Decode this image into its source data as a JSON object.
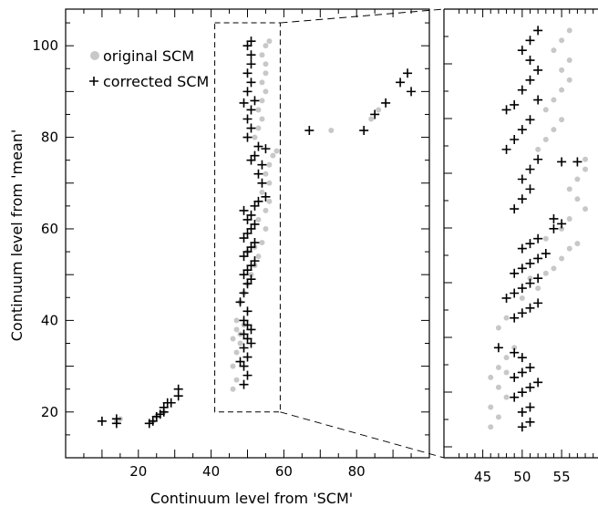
{
  "chart_data": [
    {
      "type": "scatter",
      "title": "",
      "xlabel": "Continuum level from 'SCM'",
      "ylabel": "Continuum level from 'mean'",
      "xlim": [
        0,
        100
      ],
      "ylim": [
        10,
        108
      ],
      "x_ticks": [
        20,
        40,
        60,
        80
      ],
      "y_ticks": [
        20,
        40,
        60,
        80,
        100
      ],
      "legend": {
        "placement": "top-left"
      },
      "zoom_box": {
        "x": [
          41,
          59
        ],
        "y": [
          20,
          105
        ]
      },
      "series": [
        {
          "name": "original SCM",
          "marker": "dot",
          "color": "#c8c8c8",
          "points": [
            [
              14,
              18
            ],
            [
              15,
              18.5
            ],
            [
              24,
              18
            ],
            [
              25,
              19
            ],
            [
              27,
              20
            ],
            [
              46,
              25
            ],
            [
              47,
              27
            ],
            [
              46,
              30
            ],
            [
              47,
              33
            ],
            [
              48,
              35
            ],
            [
              46,
              36
            ],
            [
              47,
              38
            ],
            [
              48,
              37
            ],
            [
              49,
              39
            ],
            [
              47,
              40
            ],
            [
              48,
              44
            ],
            [
              49,
              46
            ],
            [
              50,
              48
            ],
            [
              51,
              50
            ],
            [
              52,
              52
            ],
            [
              53,
              54
            ],
            [
              50,
              55
            ],
            [
              52,
              56
            ],
            [
              54,
              57
            ],
            [
              55,
              60
            ],
            [
              53,
              62
            ],
            [
              55,
              64
            ],
            [
              56,
              66
            ],
            [
              54,
              68
            ],
            [
              56,
              70
            ],
            [
              55,
              72
            ],
            [
              56,
              74
            ],
            [
              57,
              76
            ],
            [
              58,
              77
            ],
            [
              52,
              80
            ],
            [
              53,
              82
            ],
            [
              54,
              84
            ],
            [
              53,
              86
            ],
            [
              54,
              88
            ],
            [
              55,
              90
            ],
            [
              54,
              92
            ],
            [
              55,
              94
            ],
            [
              55,
              96
            ],
            [
              54,
              98
            ],
            [
              55,
              100
            ],
            [
              56,
              101
            ],
            [
              73,
              81.5
            ],
            [
              84,
              84
            ],
            [
              86,
              86
            ]
          ]
        },
        {
          "name": "corrected SCM",
          "marker": "plus",
          "color": "#000000",
          "points": [
            [
              10,
              18
            ],
            [
              14,
              17.5
            ],
            [
              14,
              18.5
            ],
            [
              23,
              17.5
            ],
            [
              24,
              18
            ],
            [
              25,
              19
            ],
            [
              26,
              19.5
            ],
            [
              27,
              20
            ],
            [
              27,
              21
            ],
            [
              28,
              22
            ],
            [
              29,
              22
            ],
            [
              31,
              23.5
            ],
            [
              31,
              25
            ],
            [
              49,
              26
            ],
            [
              50,
              28
            ],
            [
              49,
              30
            ],
            [
              48,
              31
            ],
            [
              50,
              32
            ],
            [
              49,
              34
            ],
            [
              51,
              35
            ],
            [
              50,
              36
            ],
            [
              49,
              37
            ],
            [
              51,
              38
            ],
            [
              50,
              39
            ],
            [
              49,
              40
            ],
            [
              50,
              42
            ],
            [
              48,
              44
            ],
            [
              49,
              46
            ],
            [
              50,
              48
            ],
            [
              51,
              49
            ],
            [
              49,
              50
            ],
            [
              50,
              51
            ],
            [
              51,
              52
            ],
            [
              52,
              53
            ],
            [
              49,
              54
            ],
            [
              50,
              55
            ],
            [
              51,
              56
            ],
            [
              52,
              57
            ],
            [
              49,
              58
            ],
            [
              50,
              59
            ],
            [
              51,
              60
            ],
            [
              52,
              61
            ],
            [
              50,
              62
            ],
            [
              51,
              63
            ],
            [
              49,
              64
            ],
            [
              52,
              65
            ],
            [
              53,
              66
            ],
            [
              55,
              67
            ],
            [
              54,
              70
            ],
            [
              53,
              72
            ],
            [
              54,
              74
            ],
            [
              51,
              75
            ],
            [
              52,
              76
            ],
            [
              53,
              78
            ],
            [
              55,
              77.5
            ],
            [
              50,
              80
            ],
            [
              51,
              82
            ],
            [
              50,
              84
            ],
            [
              51,
              86
            ],
            [
              49,
              87.5
            ],
            [
              52,
              88
            ],
            [
              50,
              90
            ],
            [
              51,
              92
            ],
            [
              50,
              94
            ],
            [
              51,
              96
            ],
            [
              51,
              98
            ],
            [
              50,
              100
            ],
            [
              51,
              101
            ],
            [
              67,
              81.5
            ],
            [
              82,
              81.5
            ],
            [
              85,
              85
            ],
            [
              88,
              87.5
            ],
            [
              92,
              92
            ],
            [
              94,
              94
            ],
            [
              95,
              90
            ]
          ]
        }
      ]
    },
    {
      "type": "scatter",
      "title": "",
      "xlabel": "",
      "ylabel": "",
      "xlim": [
        41,
        59
      ],
      "ylim": [
        20,
        105
      ],
      "x_ticks": [
        45,
        50,
        55
      ],
      "series_ref": [
        "original SCM",
        "corrected SCM"
      ],
      "points_original": [
        [
          46,
          24
        ],
        [
          47,
          26
        ],
        [
          46,
          28
        ],
        [
          48,
          30
        ],
        [
          47,
          32
        ],
        [
          46,
          34
        ],
        [
          48,
          35
        ],
        [
          47,
          36
        ],
        [
          48,
          38
        ],
        [
          49,
          40
        ],
        [
          47,
          44
        ],
        [
          48,
          46
        ],
        [
          50,
          50
        ],
        [
          52,
          52
        ],
        [
          51,
          54
        ],
        [
          53,
          55
        ],
        [
          54,
          56
        ],
        [
          55,
          58
        ],
        [
          56,
          60
        ],
        [
          57,
          61
        ],
        [
          53,
          62
        ],
        [
          55,
          64
        ],
        [
          56,
          66
        ],
        [
          58,
          68
        ],
        [
          57,
          70
        ],
        [
          56,
          72
        ],
        [
          57,
          74
        ],
        [
          58,
          76
        ],
        [
          58,
          78
        ],
        [
          52,
          80
        ],
        [
          53,
          82
        ],
        [
          54,
          84
        ],
        [
          55,
          86
        ],
        [
          53,
          88
        ],
        [
          54,
          90
        ],
        [
          55,
          92
        ],
        [
          56,
          94
        ],
        [
          55,
          96
        ],
        [
          56,
          98
        ],
        [
          54,
          100
        ],
        [
          55,
          102
        ],
        [
          56,
          104
        ]
      ],
      "points_corrected": [
        [
          50,
          24
        ],
        [
          51,
          25
        ],
        [
          50,
          27
        ],
        [
          51,
          28
        ],
        [
          49,
          30
        ],
        [
          50,
          31
        ],
        [
          51,
          32
        ],
        [
          52,
          33
        ],
        [
          49,
          34
        ],
        [
          50,
          35
        ],
        [
          51,
          36
        ],
        [
          50,
          38
        ],
        [
          49,
          39
        ],
        [
          47,
          40
        ],
        [
          49,
          46
        ],
        [
          50,
          47
        ],
        [
          51,
          48
        ],
        [
          52,
          49
        ],
        [
          48,
          50
        ],
        [
          49,
          51
        ],
        [
          50,
          52
        ],
        [
          51,
          53
        ],
        [
          52,
          54
        ],
        [
          49,
          55
        ],
        [
          50,
          56
        ],
        [
          51,
          57
        ],
        [
          52,
          58
        ],
        [
          53,
          59
        ],
        [
          50,
          60
        ],
        [
          51,
          61
        ],
        [
          52,
          62
        ],
        [
          54,
          64
        ],
        [
          55,
          65
        ],
        [
          54,
          66
        ],
        [
          49,
          68
        ],
        [
          50,
          70
        ],
        [
          51,
          72
        ],
        [
          50,
          74
        ],
        [
          51,
          76
        ],
        [
          52,
          78
        ],
        [
          55,
          77.5
        ],
        [
          57,
          77.5
        ],
        [
          48,
          80
        ],
        [
          49,
          82
        ],
        [
          50,
          84
        ],
        [
          51,
          86
        ],
        [
          48,
          88
        ],
        [
          49,
          89
        ],
        [
          52,
          90
        ],
        [
          50,
          92
        ],
        [
          51,
          94
        ],
        [
          52,
          96
        ],
        [
          51,
          98
        ],
        [
          50,
          100
        ],
        [
          51,
          102
        ],
        [
          52,
          104
        ]
      ]
    }
  ]
}
